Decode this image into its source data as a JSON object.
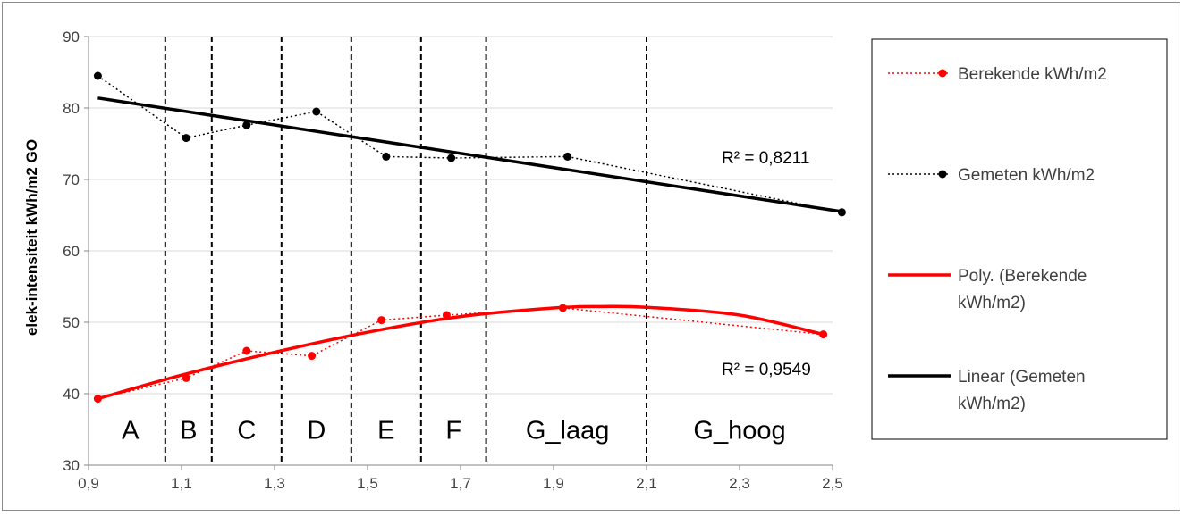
{
  "chart_data": {
    "type": "line",
    "ylabel": "elek-intensiteit kWh/m2 GO",
    "xlabel": "",
    "title": "",
    "xlim": [
      0.9,
      2.5
    ],
    "ylim": [
      30,
      90
    ],
    "x_ticks": [
      "0,9",
      "1,1",
      "1,3",
      "1,5",
      "1,7",
      "1,9",
      "2,1",
      "2,3",
      "2,5"
    ],
    "x_tick_values": [
      0.9,
      1.1,
      1.3,
      1.5,
      1.7,
      1.9,
      2.1,
      2.3,
      2.5
    ],
    "y_ticks": [
      "30",
      "40",
      "50",
      "60",
      "70",
      "80",
      "90"
    ],
    "y_tick_values": [
      30,
      40,
      50,
      60,
      70,
      80,
      90
    ],
    "grid": "horizontal",
    "legend_position": "right",
    "series": [
      {
        "name": "Berekende kWh/m2",
        "color": "#ff0000",
        "style": "dotted-markers",
        "x": [
          0.92,
          1.11,
          1.24,
          1.38,
          1.53,
          1.67,
          1.92,
          2.48
        ],
        "y": [
          39.3,
          42.2,
          46.0,
          45.3,
          50.3,
          51.0,
          52.0,
          48.3
        ]
      },
      {
        "name": "Gemeten kWh/m2",
        "color": "#000000",
        "style": "dotted-markers",
        "x": [
          0.92,
          1.11,
          1.24,
          1.39,
          1.54,
          1.68,
          1.93,
          2.52
        ],
        "y": [
          84.5,
          75.8,
          77.6,
          79.5,
          73.2,
          73.0,
          73.2,
          65.4
        ]
      }
    ],
    "trendlines": [
      {
        "name": "Poly. (Berekende kWh/m2)",
        "color": "#ff0000",
        "kind": "polynomial",
        "r2_label": "R² = 0,9549",
        "x": [
          0.92,
          1.1,
          1.3,
          1.5,
          1.7,
          1.9,
          2.0,
          2.1,
          2.3,
          2.48
        ],
        "y": [
          39.3,
          42.6,
          45.8,
          48.6,
          50.8,
          52.0,
          52.2,
          52.1,
          51.0,
          48.3
        ]
      },
      {
        "name": "Linear (Gemeten kWh/m2)",
        "color": "#000000",
        "kind": "linear",
        "r2_label": "R² = 0,8211",
        "x": [
          0.92,
          2.52
        ],
        "y": [
          81.4,
          65.5
        ]
      }
    ],
    "bands": {
      "boundaries": [
        1.065,
        1.165,
        1.315,
        1.465,
        1.615,
        1.755,
        2.1
      ],
      "labels": [
        {
          "text": "A",
          "x": 0.99
        },
        {
          "text": "B",
          "x": 1.115
        },
        {
          "text": "C",
          "x": 1.24
        },
        {
          "text": "D",
          "x": 1.39
        },
        {
          "text": "E",
          "x": 1.54
        },
        {
          "text": "F",
          "x": 1.685
        },
        {
          "text": "G_laag",
          "x": 1.93
        },
        {
          "text": "G_hoog",
          "x": 2.3
        }
      ]
    }
  },
  "legend": {
    "items": [
      {
        "label_lines": [
          "Berekende kWh/m2"
        ],
        "color": "#ff0000",
        "type": "dotted-marker"
      },
      {
        "label_lines": [
          "Gemeten kWh/m2"
        ],
        "color": "#000000",
        "type": "dotted-marker"
      },
      {
        "label_lines": [
          "Poly. (Berekende",
          "kWh/m2)"
        ],
        "color": "#ff0000",
        "type": "solid"
      },
      {
        "label_lines": [
          "Linear (Gemeten",
          "kWh/m2)"
        ],
        "color": "#000000",
        "type": "solid"
      }
    ]
  }
}
